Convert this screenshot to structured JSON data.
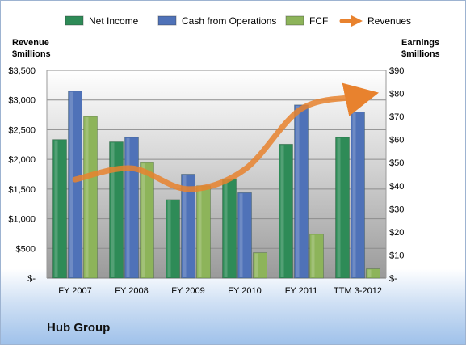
{
  "company": "Hub Group",
  "chart_data": {
    "type": "bar",
    "categories": [
      "FY 2007",
      "FY 2008",
      "FY 2009",
      "FY 2010",
      "FY 2011",
      "TTM 3-2012"
    ],
    "series": [
      {
        "name": "Net Income",
        "axis": "right",
        "color": "#2e8b57",
        "values": [
          60,
          59,
          34,
          43,
          58,
          61
        ]
      },
      {
        "name": "Cash from Operations",
        "axis": "right",
        "color": "#4f72b8",
        "values": [
          81,
          61,
          45,
          37,
          75,
          72
        ]
      },
      {
        "name": "FCF",
        "axis": "right",
        "color": "#8db45a",
        "values": [
          70,
          50,
          40,
          11,
          19,
          4
        ]
      },
      {
        "name": "Revenues",
        "axis": "left",
        "type": "line",
        "color": "#e8822e",
        "values": [
          1660,
          1850,
          1500,
          1830,
          2850,
          3050
        ]
      }
    ],
    "left_axis": {
      "title_line1": "Revenue",
      "title_line2": "$millions",
      "min": 0,
      "max": 3500,
      "step": 500,
      "tick_labels": [
        "$-",
        "$500",
        "$1,000",
        "$1,500",
        "$2,000",
        "$2,500",
        "$3,000",
        "$3,500"
      ]
    },
    "right_axis": {
      "title_line1": "Earnings",
      "title_line2": "$millions",
      "min": 0,
      "max": 90,
      "step": 10,
      "tick_labels": [
        "$-",
        "$10",
        "$20",
        "$30",
        "$40",
        "$50",
        "$60",
        "$70",
        "$80",
        "$90"
      ]
    },
    "legend_position": "top",
    "grid": true
  }
}
